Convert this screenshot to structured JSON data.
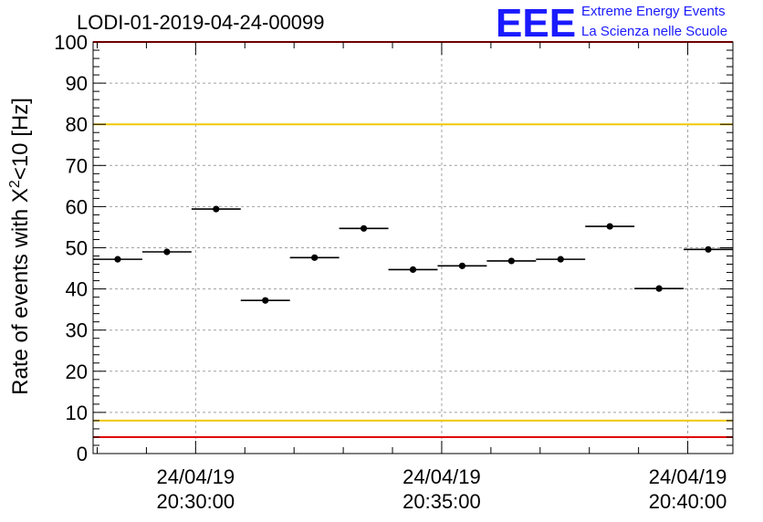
{
  "chart_data": {
    "type": "scatter",
    "title": "LODI-01-2019-04-24-00099",
    "ylabel_main": "Rate of events with X",
    "ylabel_sup": "2",
    "ylabel_tail": "<10 [Hz]",
    "ylim": [
      0,
      100
    ],
    "yticks": [
      "0",
      "10",
      "20",
      "30",
      "40",
      "50",
      "60",
      "70",
      "80",
      "90",
      "100"
    ],
    "xlim": [
      "2019-04-24 20:27:55",
      "2019-04-24 20:40:55"
    ],
    "xticks": [
      {
        "t": "2019-04-24 20:30:00",
        "date": "24/04/19",
        "time": "20:30:00"
      },
      {
        "t": "2019-04-24 20:35:00",
        "date": "24/04/19",
        "time": "20:35:00"
      },
      {
        "t": "2019-04-24 20:40:00",
        "date": "24/04/19",
        "time": "20:40:00"
      }
    ],
    "bin_width_s": 60,
    "points": [
      {
        "t": "2019-04-24 20:28:25",
        "y": 47.2
      },
      {
        "t": "2019-04-24 20:29:25",
        "y": 49.0
      },
      {
        "t": "2019-04-24 20:30:25",
        "y": 59.4
      },
      {
        "t": "2019-04-24 20:31:25",
        "y": 37.2
      },
      {
        "t": "2019-04-24 20:32:25",
        "y": 47.6
      },
      {
        "t": "2019-04-24 20:33:25",
        "y": 54.7
      },
      {
        "t": "2019-04-24 20:34:25",
        "y": 44.7
      },
      {
        "t": "2019-04-24 20:35:25",
        "y": 45.6
      },
      {
        "t": "2019-04-24 20:36:25",
        "y": 46.8
      },
      {
        "t": "2019-04-24 20:37:25",
        "y": 47.2
      },
      {
        "t": "2019-04-24 20:38:25",
        "y": 55.2
      },
      {
        "t": "2019-04-24 20:39:25",
        "y": 40.1
      },
      {
        "t": "2019-04-24 20:40:25",
        "y": 49.6
      }
    ],
    "reference_lines": [
      {
        "y": 80,
        "color": "#f0c800"
      },
      {
        "y": 8,
        "color": "#f0c800"
      },
      {
        "y": 4,
        "color": "#e00000"
      },
      {
        "y": 100,
        "color": "#e00000"
      }
    ],
    "grid": true,
    "colors": {
      "marker": "#000000",
      "grid": "#a0a0a0"
    }
  },
  "logo": {
    "mark": "EEE",
    "line1": "Extreme Energy Events",
    "line2": "La Scienza nelle Scuole",
    "color": "#1a1aff"
  }
}
